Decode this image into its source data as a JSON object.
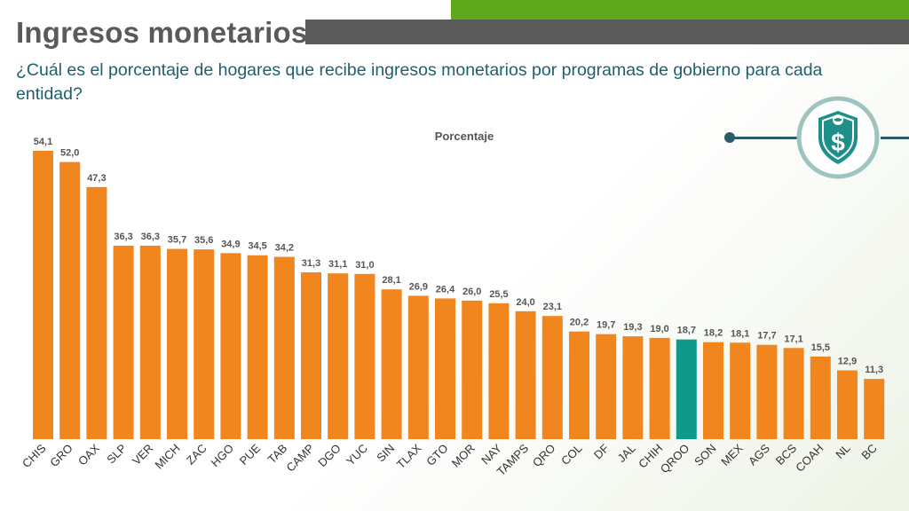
{
  "header": {
    "title": "Ingresos monetarios",
    "question": "¿Cuál es el porcentaje de hogares que recibe ingresos monetarios por programas de gobierno para cada entidad?"
  },
  "badge": {
    "icon": "shield-dollar-icon"
  },
  "colors": {
    "bar": "#f0861d",
    "highlight": "#10998a",
    "green_accent": "#5fa81c",
    "gray_accent": "#5a5a5a",
    "text_teal": "#1f5f6e"
  },
  "chart_data": {
    "type": "bar",
    "title": "Porcentaje",
    "xlabel": "",
    "ylabel": "",
    "ylim": [
      0,
      60
    ],
    "grid": false,
    "highlight_category": "QROO",
    "categories": [
      "CHIS",
      "GRO",
      "OAX",
      "SLP",
      "VER",
      "MICH",
      "ZAC",
      "HGO",
      "PUE",
      "TAB",
      "CAMP",
      "DGO",
      "YUC",
      "SIN",
      "TLAX",
      "GTO",
      "MOR",
      "NAY",
      "TAMPS",
      "QRO",
      "COL",
      "DF",
      "JAL",
      "CHIH",
      "QROO",
      "SON",
      "MEX",
      "AGS",
      "BCS",
      "COAH",
      "NL",
      "BC"
    ],
    "values": [
      54.1,
      52.0,
      47.3,
      36.3,
      36.3,
      35.7,
      35.6,
      34.9,
      34.5,
      34.2,
      31.3,
      31.1,
      31.0,
      28.1,
      26.9,
      26.4,
      26.0,
      25.5,
      24.0,
      23.1,
      20.2,
      19.7,
      19.3,
      19.0,
      18.7,
      18.2,
      18.1,
      17.7,
      17.1,
      15.5,
      12.9,
      11.3
    ],
    "value_labels": [
      "54,1",
      "52,0",
      "47,3",
      "36,3",
      "36,3",
      "35,7",
      "35,6",
      "34,9",
      "34,5",
      "34,2",
      "31,3",
      "31,1",
      "31,0",
      "28,1",
      "26,9",
      "26,4",
      "26,0",
      "25,5",
      "24,0",
      "23,1",
      "20,2",
      "19,7",
      "19,3",
      "19,0",
      "18,7",
      "18,2",
      "18,1",
      "17,7",
      "17,1",
      "15,5",
      "12,9",
      "11,3"
    ]
  }
}
